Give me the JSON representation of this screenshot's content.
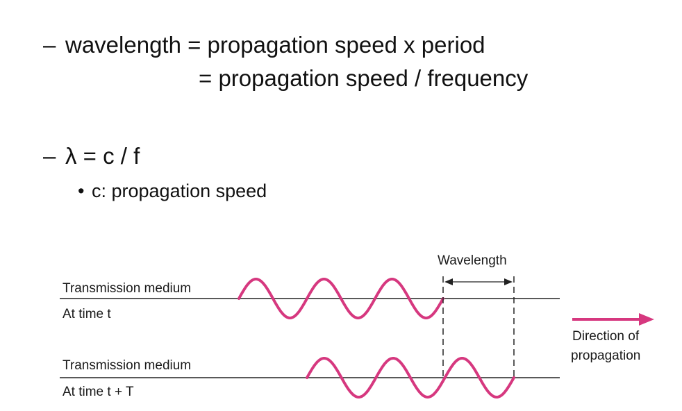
{
  "bullets": {
    "dash": "–",
    "line1": "wavelength = propagation speed x period",
    "line2": "= propagation speed / frequency",
    "line3": "λ = c / f",
    "sub_bullet": "•",
    "line4": "c: propagation speed"
  },
  "figure": {
    "wavelength_label": "Wavelength",
    "medium_label_1": "Transmission medium",
    "time_label_1": "At time t",
    "medium_label_2": "Transmission medium",
    "time_label_2": "At time t + T",
    "direction_label_line1": "Direction of",
    "direction_label_line2": "propagation"
  },
  "colors": {
    "wave": "#d6387f",
    "arrow": "#d6387f",
    "lines": "#222222"
  }
}
